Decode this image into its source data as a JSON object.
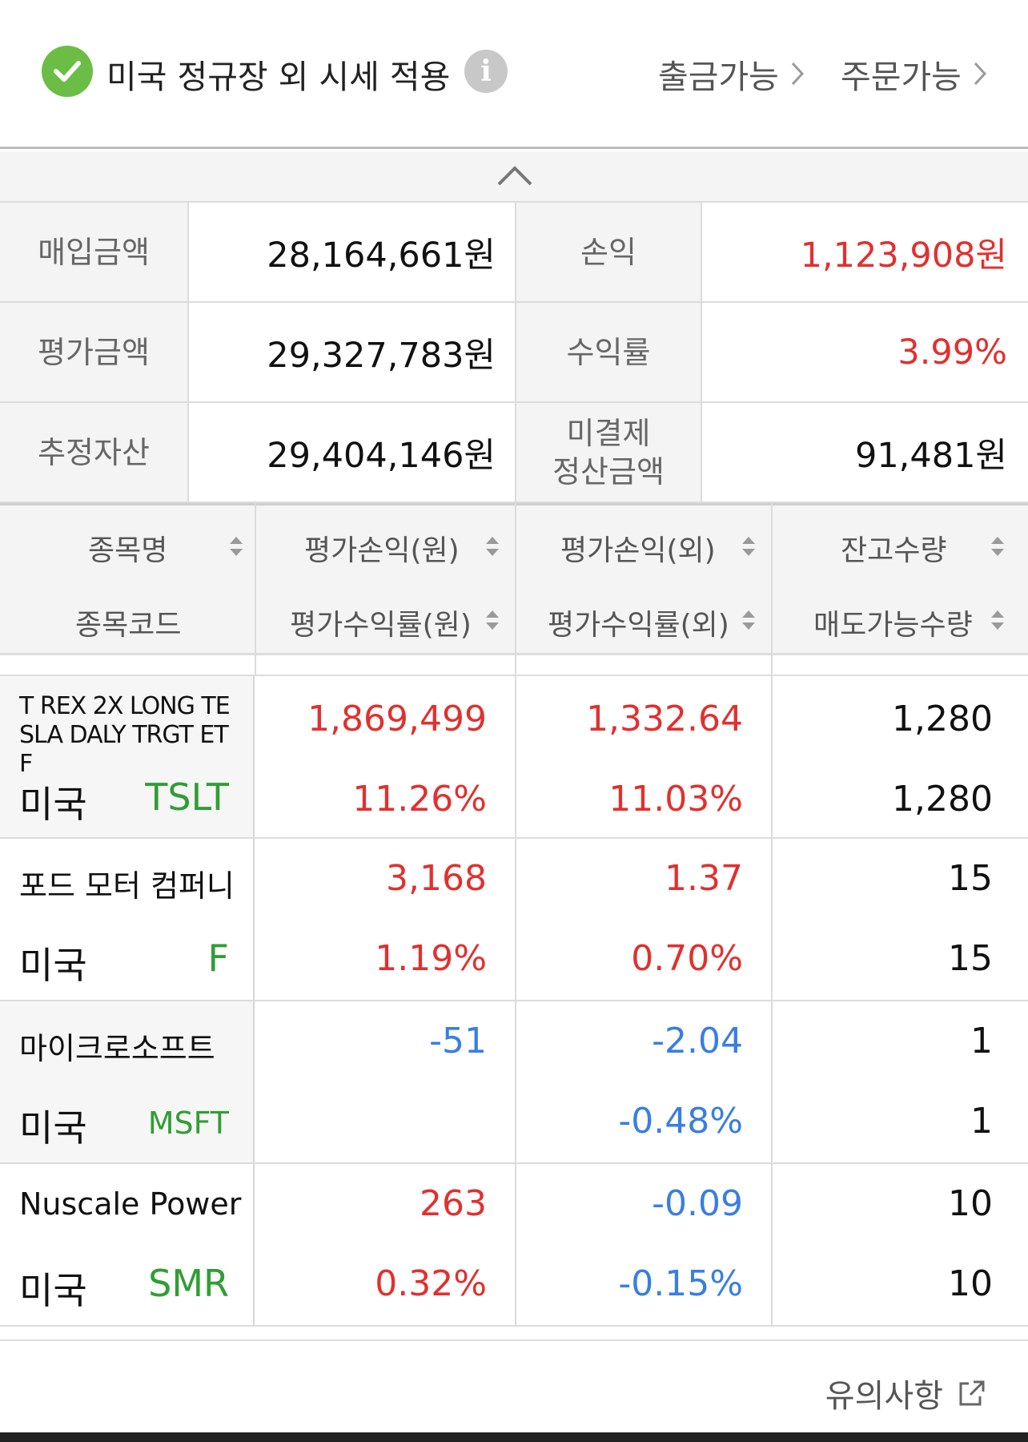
{
  "top": {
    "label": "미국 정규장 외 시세 적용",
    "info_icon": "i",
    "withdraw_link": "출금가능",
    "order_link": "주문가능",
    "check_color": "#6cbd45"
  },
  "summary": {
    "purchase_label": "매입금액",
    "purchase_value": "28,164,661원",
    "pl_label": "손익",
    "pl_value": "1,123,908원",
    "eval_label": "평가금액",
    "eval_value": "29,327,783원",
    "return_label": "수익률",
    "return_value": "3.99%",
    "asset_label": "추정자산",
    "asset_value": "29,404,146원",
    "unsettled_label_1": "미결제",
    "unsettled_label_2": "정산금액",
    "unsettled_value": "91,481원"
  },
  "table": {
    "headers": {
      "name": "종목명",
      "code": "종목코드",
      "pl_krw": "평가손익(원)",
      "rate_krw": "평가수익률(원)",
      "pl_fx": "평가손익(외)",
      "rate_fx": "평가수익률(외)",
      "qty": "잔고수량",
      "sellable": "매도가능수량"
    },
    "rows": [
      {
        "name_lines": [
          "T REX 2X LONG TE",
          "SLA DALY TRGT ET",
          "F"
        ],
        "country": "미국",
        "code": "TSLT",
        "pl_krw": "1,869,499",
        "rate_krw": "11.26%",
        "pl_fx": "1,332.64",
        "rate_fx": "11.03%",
        "qty": "1,280",
        "sellable": "1,280"
      },
      {
        "name": "포드 모터 컴퍼니",
        "country": "미국",
        "code": "F",
        "pl_krw": "3,168",
        "rate_krw": "1.19%",
        "pl_fx": "1.37",
        "rate_fx": "0.70%",
        "qty": "15",
        "sellable": "15"
      },
      {
        "name": "마이크로소프트",
        "country": "미국",
        "code": "MSFT",
        "pl_krw": "-51",
        "rate_krw": "",
        "pl_fx": "-2.04",
        "rate_fx": "-0.48%",
        "qty": "1",
        "sellable": "1"
      },
      {
        "name": "Nuscale Power",
        "country": "미국",
        "code": "SMR",
        "pl_krw": "263",
        "rate_krw": "0.32%",
        "pl_fx": "-0.09",
        "rate_fx": "-0.15%",
        "qty": "10",
        "sellable": "10"
      }
    ]
  },
  "footer": {
    "notice": "유의사항"
  },
  "colors": {
    "positive": "#e0312f",
    "negative": "#3a7ee0",
    "code": "#2f9e34"
  }
}
